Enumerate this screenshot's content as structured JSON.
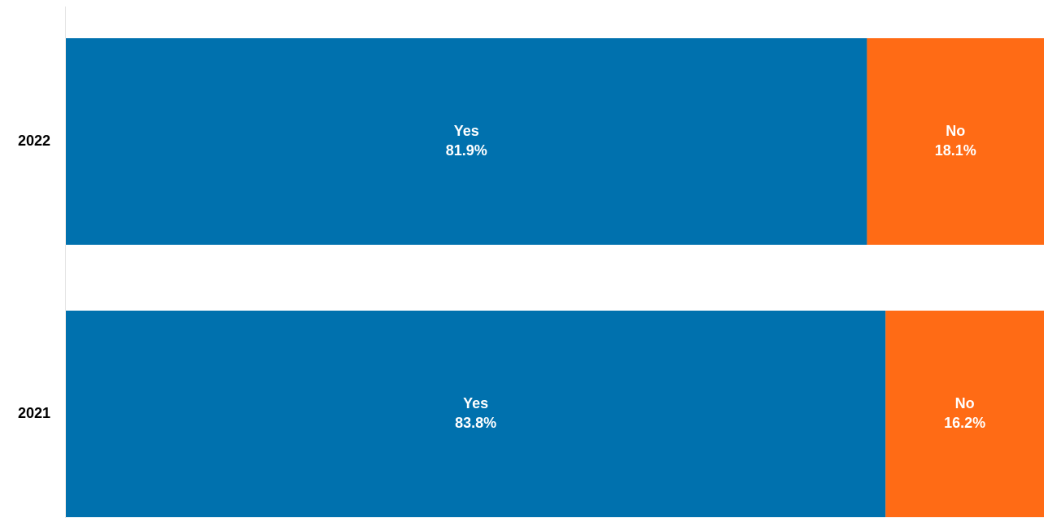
{
  "chart_data": {
    "type": "bar",
    "orientation": "horizontal",
    "stacked": true,
    "categories": [
      "2022",
      "2021"
    ],
    "xlim": [
      0,
      100
    ],
    "series": [
      {
        "name": "Yes",
        "color": "#0071ae",
        "values": [
          81.9,
          83.8
        ],
        "value_labels": [
          "81.9%",
          "83.8%"
        ]
      },
      {
        "name": "No",
        "color": "#ff6b15",
        "values": [
          18.1,
          16.2
        ],
        "value_labels": [
          "18.1%",
          "16.2%"
        ]
      }
    ]
  }
}
